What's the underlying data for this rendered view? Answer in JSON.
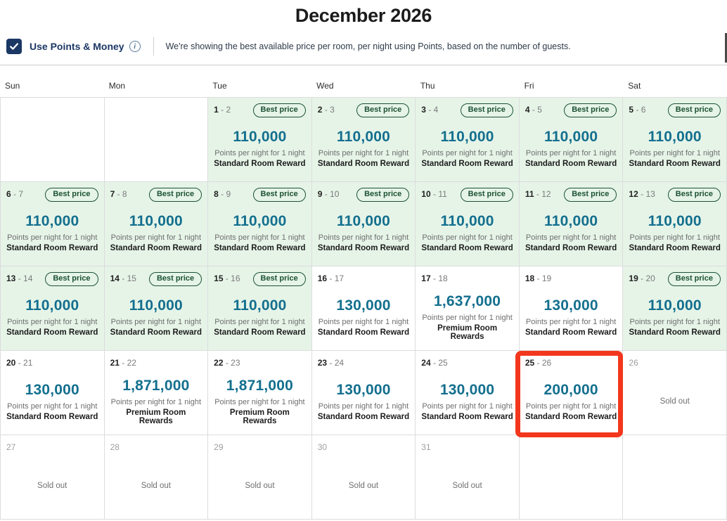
{
  "title": "December 2026",
  "controls": {
    "checkbox_label": "Use Points & Money",
    "checkbox_checked": true,
    "description": "We're showing the best available price per room, per night using Points, based on the number of guests."
  },
  "colors": {
    "accent_red": "#f2371d",
    "best_price_bg": "#e6f4e8",
    "badge_green": "#1c5233",
    "points_teal": "#136f8e",
    "brand_navy": "#1b3764"
  },
  "calendar": {
    "day_headers": [
      "Sun",
      "Mon",
      "Tue",
      "Wed",
      "Thu",
      "Fri",
      "Sat"
    ],
    "badge_label": "Best price",
    "sold_out_label": "Sold out",
    "points_caption": "Points per night for 1 night",
    "weeks": [
      [
        {
          "type": "empty"
        },
        {
          "type": "empty"
        },
        {
          "type": "price",
          "start": "1",
          "end": "2",
          "points": "110,000",
          "room": "Standard Room Reward",
          "best_price": true,
          "selected": false
        },
        {
          "type": "price",
          "start": "2",
          "end": "3",
          "points": "110,000",
          "room": "Standard Room Reward",
          "best_price": true,
          "selected": false
        },
        {
          "type": "price",
          "start": "3",
          "end": "4",
          "points": "110,000",
          "room": "Standard Room Reward",
          "best_price": true,
          "selected": false
        },
        {
          "type": "price",
          "start": "4",
          "end": "5",
          "points": "110,000",
          "room": "Standard Room Reward",
          "best_price": true,
          "selected": false
        },
        {
          "type": "price",
          "start": "5",
          "end": "6",
          "points": "110,000",
          "room": "Standard Room Reward",
          "best_price": true,
          "selected": false
        }
      ],
      [
        {
          "type": "price",
          "start": "6",
          "end": "7",
          "points": "110,000",
          "room": "Standard Room Reward",
          "best_price": true,
          "selected": false
        },
        {
          "type": "price",
          "start": "7",
          "end": "8",
          "points": "110,000",
          "room": "Standard Room Reward",
          "best_price": true,
          "selected": false
        },
        {
          "type": "price",
          "start": "8",
          "end": "9",
          "points": "110,000",
          "room": "Standard Room Reward",
          "best_price": true,
          "selected": false
        },
        {
          "type": "price",
          "start": "9",
          "end": "10",
          "points": "110,000",
          "room": "Standard Room Reward",
          "best_price": true,
          "selected": false
        },
        {
          "type": "price",
          "start": "10",
          "end": "11",
          "points": "110,000",
          "room": "Standard Room Reward",
          "best_price": true,
          "selected": false
        },
        {
          "type": "price",
          "start": "11",
          "end": "12",
          "points": "110,000",
          "room": "Standard Room Reward",
          "best_price": true,
          "selected": false
        },
        {
          "type": "price",
          "start": "12",
          "end": "13",
          "points": "110,000",
          "room": "Standard Room Reward",
          "best_price": true,
          "selected": false
        }
      ],
      [
        {
          "type": "price",
          "start": "13",
          "end": "14",
          "points": "110,000",
          "room": "Standard Room Reward",
          "best_price": true,
          "selected": false
        },
        {
          "type": "price",
          "start": "14",
          "end": "15",
          "points": "110,000",
          "room": "Standard Room Reward",
          "best_price": true,
          "selected": false
        },
        {
          "type": "price",
          "start": "15",
          "end": "16",
          "points": "110,000",
          "room": "Standard Room Reward",
          "best_price": true,
          "selected": false
        },
        {
          "type": "price",
          "start": "16",
          "end": "17",
          "points": "130,000",
          "room": "Standard Room Reward",
          "best_price": false,
          "selected": false
        },
        {
          "type": "price",
          "start": "17",
          "end": "18",
          "points": "1,637,000",
          "room": "Premium Room Rewards",
          "best_price": false,
          "selected": false
        },
        {
          "type": "price",
          "start": "18",
          "end": "19",
          "points": "130,000",
          "room": "Standard Room Reward",
          "best_price": false,
          "selected": false
        },
        {
          "type": "price",
          "start": "19",
          "end": "20",
          "points": "110,000",
          "room": "Standard Room Reward",
          "best_price": true,
          "selected": false
        }
      ],
      [
        {
          "type": "price",
          "start": "20",
          "end": "21",
          "points": "130,000",
          "room": "Standard Room Reward",
          "best_price": false,
          "selected": false
        },
        {
          "type": "price",
          "start": "21",
          "end": "22",
          "points": "1,871,000",
          "room": "Premium Room Rewards",
          "best_price": false,
          "selected": false
        },
        {
          "type": "price",
          "start": "22",
          "end": "23",
          "points": "1,871,000",
          "room": "Premium Room Rewards",
          "best_price": false,
          "selected": false
        },
        {
          "type": "price",
          "start": "23",
          "end": "24",
          "points": "130,000",
          "room": "Standard Room Reward",
          "best_price": false,
          "selected": false
        },
        {
          "type": "price",
          "start": "24",
          "end": "25",
          "points": "130,000",
          "room": "Standard Room Reward",
          "best_price": false,
          "selected": false
        },
        {
          "type": "price",
          "start": "25",
          "end": "26",
          "points": "200,000",
          "room": "Standard Room Reward",
          "best_price": false,
          "selected": true
        },
        {
          "type": "soldout",
          "start": "26"
        }
      ],
      [
        {
          "type": "soldout",
          "start": "27"
        },
        {
          "type": "soldout",
          "start": "28"
        },
        {
          "type": "soldout",
          "start": "29"
        },
        {
          "type": "soldout",
          "start": "30"
        },
        {
          "type": "soldout",
          "start": "31"
        },
        {
          "type": "empty"
        },
        {
          "type": "empty"
        }
      ]
    ]
  }
}
